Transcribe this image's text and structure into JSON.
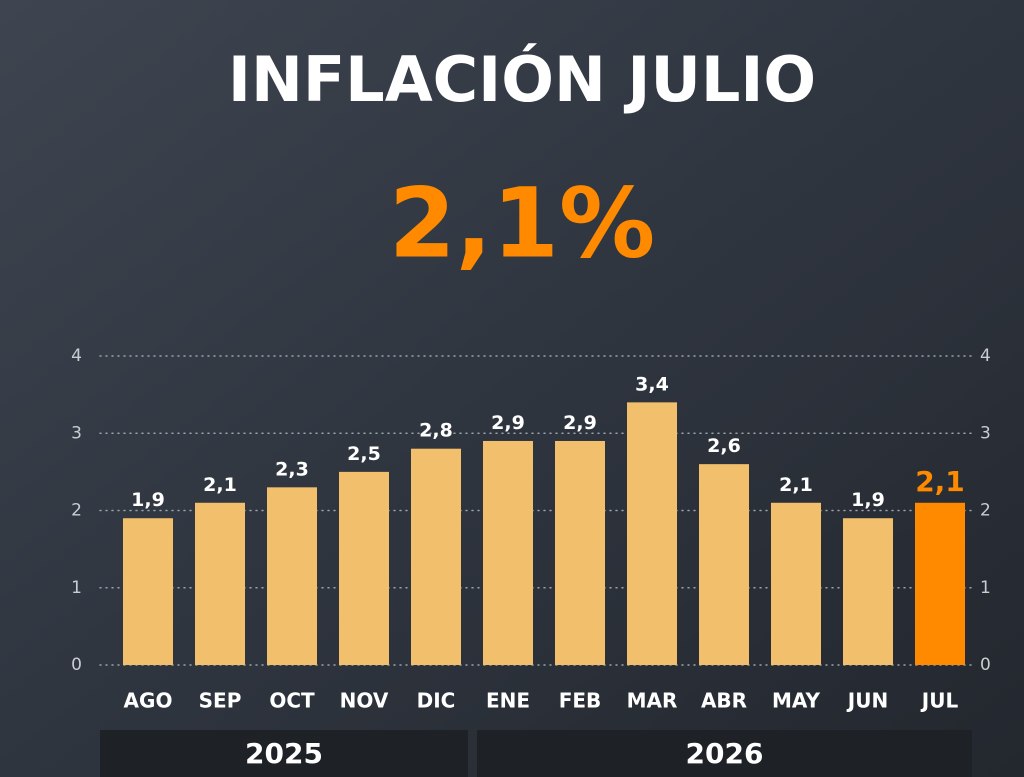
{
  "chart_data": {
    "type": "bar",
    "title": "INFLACIÓN JULIO",
    "headline": "2,1%",
    "categories": [
      "AGO",
      "SEP",
      "OCT",
      "NOV",
      "DIC",
      "ENE",
      "FEB",
      "MAR",
      "ABR",
      "MAY",
      "JUN",
      "JUL"
    ],
    "values": [
      1.9,
      2.1,
      2.3,
      2.5,
      2.8,
      2.9,
      2.9,
      3.4,
      2.6,
      2.1,
      1.9,
      2.1
    ],
    "value_labels": [
      "1,9",
      "2,1",
      "2,3",
      "2,5",
      "2,8",
      "2,9",
      "2,9",
      "3,4",
      "2,6",
      "2,1",
      "1,9",
      "2,1"
    ],
    "colors": [
      "#f2bf6c",
      "#f2bf6c",
      "#f2bf6c",
      "#f2bf6c",
      "#f2bf6c",
      "#f2bf6c",
      "#f2bf6c",
      "#f2bf6c",
      "#f2bf6c",
      "#f2bf6c",
      "#f2bf6c",
      "#ff8a00"
    ],
    "ylim": [
      0,
      4
    ],
    "yticks": [
      0,
      1,
      2,
      3,
      4
    ],
    "grid": true,
    "groups": [
      "2025",
      "2026"
    ]
  }
}
